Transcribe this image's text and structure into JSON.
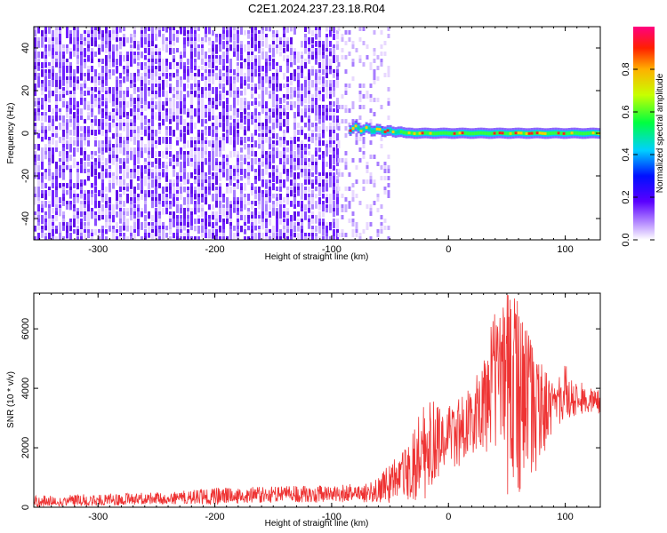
{
  "title": "C2E1.2024.237.23.18.R04",
  "chart_data": [
    {
      "type": "heatmap",
      "xlabel": "Height of straight line (km)",
      "ylabel": "Frequency (Hz)",
      "xlim": [
        -355,
        130
      ],
      "ylim": [
        -50,
        50
      ],
      "xticks": [
        -300,
        -200,
        -100,
        0,
        100
      ],
      "yticks": [
        -40,
        -20,
        0,
        20,
        40
      ],
      "colorbar": {
        "label": "Normalized spectral amplitude",
        "range": [
          0,
          1
        ],
        "ticks": [
          "0.0",
          "0.2",
          "0.4",
          "0.6",
          "0.8"
        ]
      },
      "features": [
        {
          "description": "broadband noise, low amplitude",
          "x_range": [
            -355,
            -95
          ],
          "f_range": [
            -50,
            50
          ]
        },
        {
          "description": "sparse noise",
          "x_range": [
            -95,
            -52
          ],
          "f_range": [
            -50,
            50
          ]
        },
        {
          "description": "narrow carrier line near 0 Hz",
          "x_range": [
            -85,
            130
          ],
          "f_center": 0,
          "peak_amplitude": 0.95
        }
      ]
    },
    {
      "type": "line",
      "xlabel": "Height of straight line (km)",
      "ylabel": "SNR (10 * v/v)",
      "xlim": [
        -355,
        130
      ],
      "ylim": [
        0,
        7200
      ],
      "xticks": [
        -300,
        -200,
        -100,
        0,
        100
      ],
      "yticks": [
        0,
        2000,
        4000,
        6000
      ],
      "series": [
        {
          "color": "#ee3333",
          "x": [
            -355,
            -300,
            -250,
            -200,
            -150,
            -100,
            -80,
            -60,
            -50,
            -40,
            -30,
            -20,
            -10,
            0,
            10,
            20,
            30,
            40,
            50,
            60,
            70,
            80,
            90,
            100,
            110,
            120,
            130
          ],
          "values": [
            150,
            200,
            250,
            320,
            380,
            420,
            450,
            550,
            700,
            900,
            1200,
            1800,
            2000,
            2300,
            2600,
            3000,
            3800,
            4600,
            4900,
            4700,
            4300,
            3900,
            3700,
            3700,
            3600,
            3550,
            3550
          ],
          "envelope_max": [
            400,
            450,
            500,
            650,
            700,
            750,
            800,
            1000,
            1500,
            1800,
            2700,
            3500,
            3600,
            3500,
            3700,
            4200,
            5200,
            6700,
            7200,
            7100,
            6100,
            4800,
            4100,
            4800,
            4300,
            4100,
            4000
          ],
          "envelope_min": [
            0,
            50,
            100,
            100,
            150,
            150,
            150,
            150,
            150,
            150,
            150,
            200,
            1000,
            1200,
            1400,
            1700,
            2000,
            1500,
            300,
            400,
            800,
            1400,
            2600,
            2800,
            3000,
            3200,
            3100
          ]
        }
      ]
    }
  ]
}
